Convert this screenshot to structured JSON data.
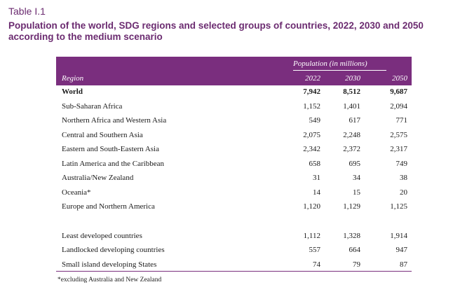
{
  "table_label": "Table I.1",
  "title": "Population of the world, SDG regions and selected groups of countries, 2022, 2030 and 2050 according to the medium scenario",
  "header": {
    "group": "Population (in millions)",
    "region": "Region",
    "years": [
      "2022",
      "2030",
      "2050"
    ]
  },
  "rows": [
    {
      "region": "World",
      "values": [
        "7,942",
        "8,512",
        "9,687"
      ],
      "bold": true
    },
    {
      "region": "Sub-Saharan Africa",
      "values": [
        "1,152",
        "1,401",
        "2,094"
      ]
    },
    {
      "region": "Northern Africa and Western Asia",
      "values": [
        "549",
        "617",
        "771"
      ]
    },
    {
      "region": "Central and Southern Asia",
      "values": [
        "2,075",
        "2,248",
        "2,575"
      ]
    },
    {
      "region": "Eastern and South-Eastern Asia",
      "values": [
        "2,342",
        "2,372",
        "2,317"
      ]
    },
    {
      "region": "Latin America and the Caribbean",
      "values": [
        "658",
        "695",
        "749"
      ]
    },
    {
      "region": "Australia/New Zealand",
      "values": [
        "31",
        "34",
        "38"
      ]
    },
    {
      "region": "Oceania*",
      "values": [
        "14",
        "15",
        "20"
      ]
    },
    {
      "region": "Europe and Northern America",
      "values": [
        "1,120",
        "1,129",
        "1,125"
      ]
    },
    {
      "region": "Least developed countries",
      "values": [
        "1,112",
        "1,328",
        "1,914"
      ],
      "gap_before": true
    },
    {
      "region": "Landlocked developing countries",
      "values": [
        "557",
        "664",
        "947"
      ]
    },
    {
      "region": "Small island developing States",
      "values": [
        "74",
        "79",
        "87"
      ]
    }
  ],
  "footnote": "*excluding Australia and New Zealand",
  "colors": {
    "accent": "#7a2e7e",
    "title": "#6b2b70"
  }
}
